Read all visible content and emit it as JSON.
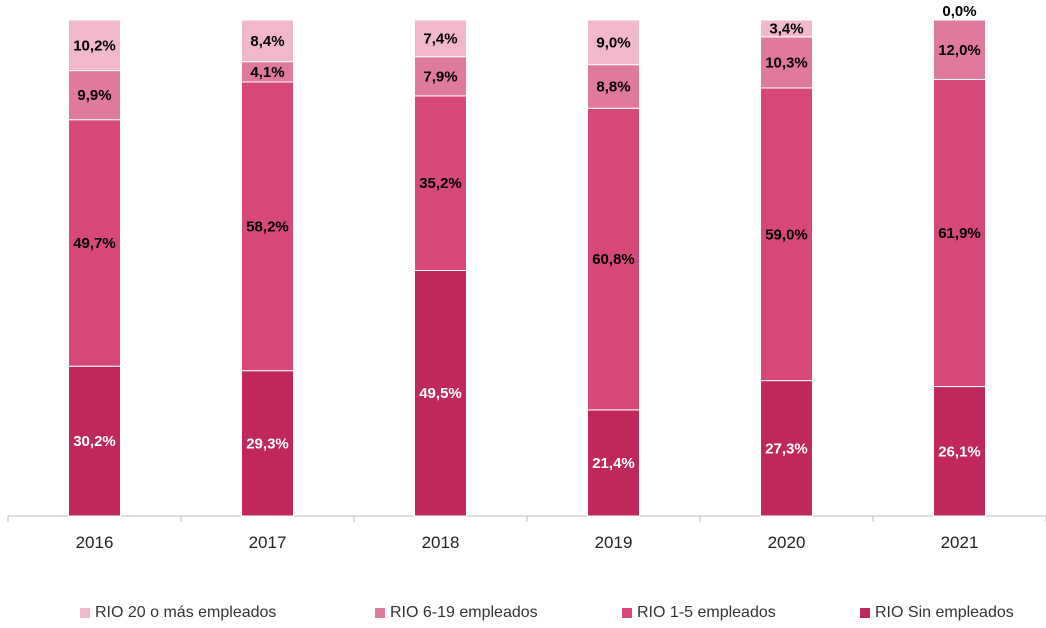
{
  "chart_data": {
    "type": "bar",
    "stacked": true,
    "categories": [
      "2016",
      "2017",
      "2018",
      "2019",
      "2020",
      "2021"
    ],
    "series": [
      {
        "name": "RIO Sin empleados",
        "color": "#c0285a",
        "values": [
          30.2,
          29.3,
          49.5,
          21.4,
          27.3,
          26.1
        ],
        "labels": [
          "30,2%",
          "29,3%",
          "49,5%",
          "21,4%",
          "27,3%",
          "26,1%"
        ],
        "label_color": "#ffffff"
      },
      {
        "name": "RIO 1-5 empleados",
        "color": "#d64877",
        "values": [
          49.7,
          58.2,
          35.2,
          60.8,
          59.0,
          61.9
        ],
        "labels": [
          "49,7%",
          "58,2%",
          "35,2%",
          "60,8%",
          "59,0%",
          "61,9%"
        ],
        "label_color": "#000000"
      },
      {
        "name": "RIO 6-19 empleados",
        "color": "#e07a9a",
        "values": [
          9.9,
          4.1,
          7.9,
          8.8,
          10.3,
          12.0
        ],
        "labels": [
          "9,9%",
          "4,1%",
          "7,9%",
          "8,8%",
          "10,3%",
          "12,0%"
        ],
        "label_color": "#000000"
      },
      {
        "name": "RIO 20 o más empleados",
        "color": "#f0b8c8",
        "values": [
          10.2,
          8.4,
          7.4,
          9.0,
          3.4,
          0.0
        ],
        "labels": [
          "10,2%",
          "8,4%",
          "7,4%",
          "9,0%",
          "3,4%",
          "0,0%"
        ],
        "label_color": "#000000"
      }
    ],
    "legend_order": [
      "RIO 20 o más empleados",
      "RIO 6-19 empleados",
      "RIO 1-5 empleados",
      "RIO Sin empleados"
    ],
    "ylim": [
      0,
      100
    ],
    "legend_position": "bottom",
    "grid": false,
    "axis_color": "#bfbfbf"
  }
}
